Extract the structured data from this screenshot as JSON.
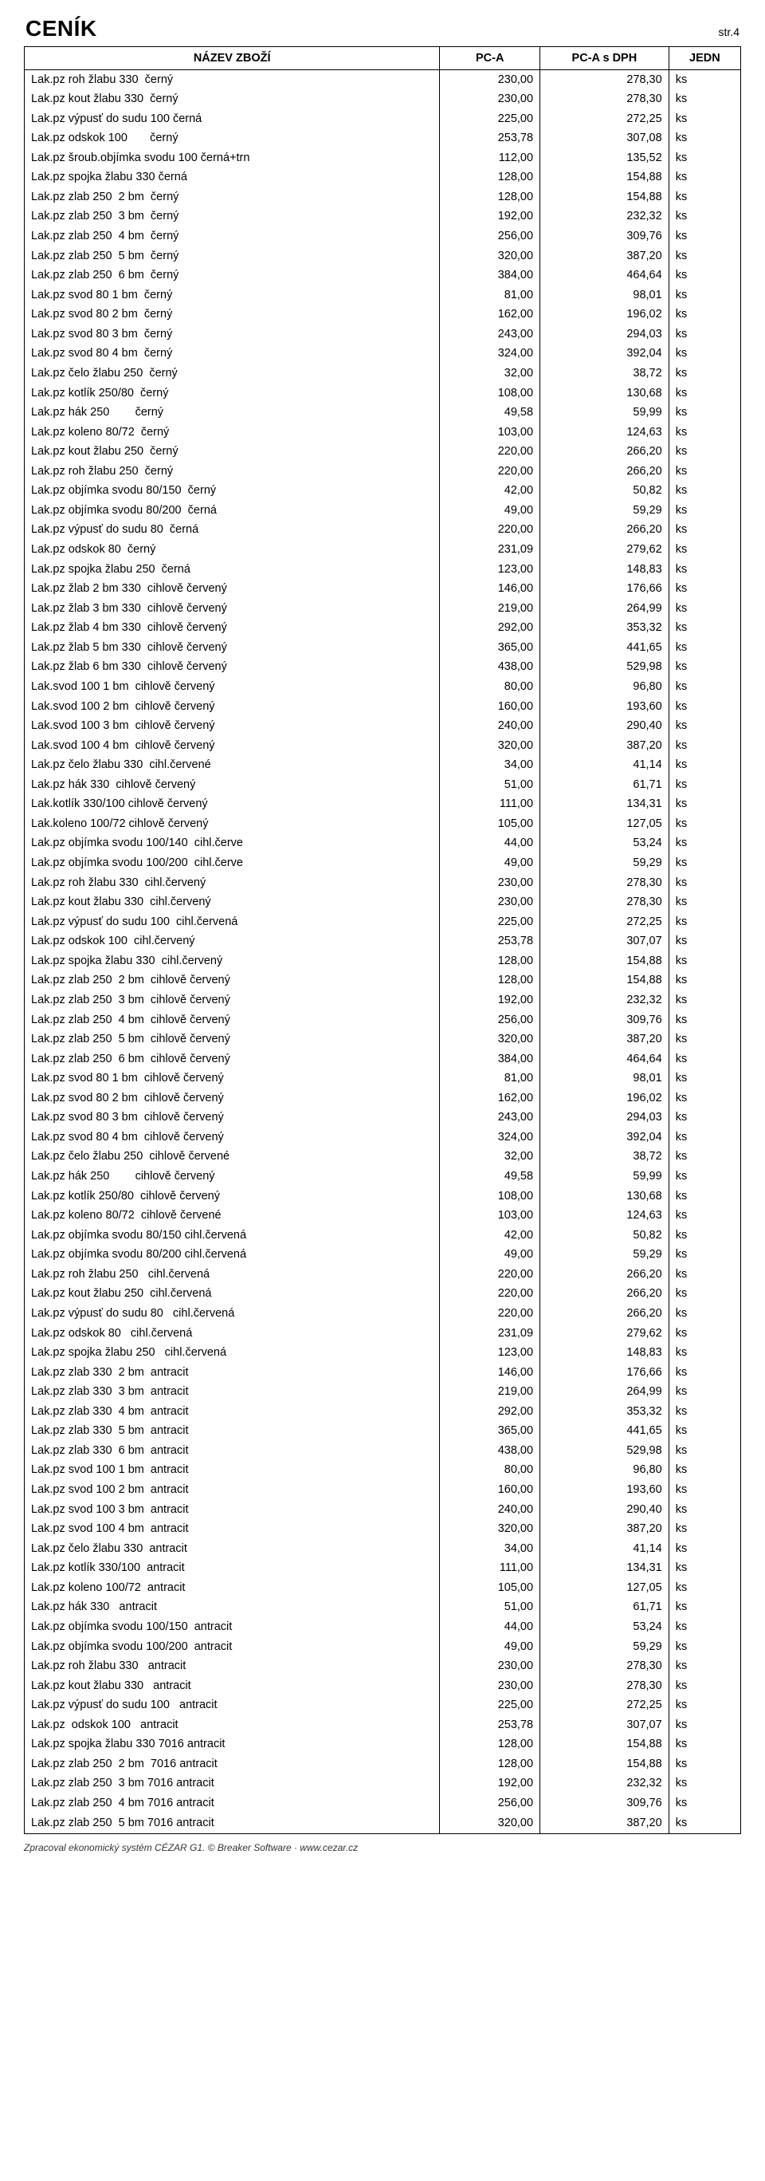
{
  "header": {
    "title": "CENÍK",
    "page_label": "str.4"
  },
  "columns": {
    "name": "NÁZEV ZBOŽÍ",
    "pca": "PC-A",
    "pcadph": "PC-A s DPH",
    "jedn": "JEDN"
  },
  "footer": "Zpracoval ekonomický systém CÉZAR G1.   © Breaker Software · www.cezar.cz",
  "rows": [
    {
      "name": "Lak.pz roh žlabu 330  černý",
      "a": "230,00",
      "b": "278,30",
      "u": "ks"
    },
    {
      "name": "Lak.pz kout žlabu 330  černý",
      "a": "230,00",
      "b": "278,30",
      "u": "ks"
    },
    {
      "name": "Lak.pz výpusť do sudu 100 černá",
      "a": "225,00",
      "b": "272,25",
      "u": "ks"
    },
    {
      "name": "Lak.pz odskok 100       černý",
      "a": "253,78",
      "b": "307,08",
      "u": "ks"
    },
    {
      "name": "Lak.pz šroub.objímka svodu 100 černá+trn",
      "a": "112,00",
      "b": "135,52",
      "u": "ks"
    },
    {
      "name": "Lak.pz spojka žlabu 330 černá",
      "a": "128,00",
      "b": "154,88",
      "u": "ks"
    },
    {
      "name": "Lak.pz zlab 250  2 bm  černý",
      "a": "128,00",
      "b": "154,88",
      "u": "ks"
    },
    {
      "name": "Lak.pz zlab 250  3 bm  černý",
      "a": "192,00",
      "b": "232,32",
      "u": "ks"
    },
    {
      "name": "Lak.pz zlab 250  4 bm  černý",
      "a": "256,00",
      "b": "309,76",
      "u": "ks"
    },
    {
      "name": "Lak.pz zlab 250  5 bm  černý",
      "a": "320,00",
      "b": "387,20",
      "u": "ks"
    },
    {
      "name": "Lak.pz zlab 250  6 bm  černý",
      "a": "384,00",
      "b": "464,64",
      "u": "ks"
    },
    {
      "name": "Lak.pz svod 80 1 bm  černý",
      "a": "81,00",
      "b": "98,01",
      "u": "ks"
    },
    {
      "name": "Lak.pz svod 80 2 bm  černý",
      "a": "162,00",
      "b": "196,02",
      "u": "ks"
    },
    {
      "name": "Lak.pz svod 80 3 bm  černý",
      "a": "243,00",
      "b": "294,03",
      "u": "ks"
    },
    {
      "name": "Lak.pz svod 80 4 bm  černý",
      "a": "324,00",
      "b": "392,04",
      "u": "ks"
    },
    {
      "name": "Lak.pz čelo žlabu 250  černý",
      "a": "32,00",
      "b": "38,72",
      "u": "ks"
    },
    {
      "name": "Lak.pz kotlík 250/80  černý",
      "a": "108,00",
      "b": "130,68",
      "u": "ks"
    },
    {
      "name": "Lak.pz hák 250        černý",
      "a": "49,58",
      "b": "59,99",
      "u": "ks"
    },
    {
      "name": "Lak.pz koleno 80/72  černý",
      "a": "103,00",
      "b": "124,63",
      "u": "ks"
    },
    {
      "name": "Lak.pz kout žlabu 250  černý",
      "a": "220,00",
      "b": "266,20",
      "u": "ks"
    },
    {
      "name": "Lak.pz roh žlabu 250  černý",
      "a": "220,00",
      "b": "266,20",
      "u": "ks"
    },
    {
      "name": "Lak.pz objímka svodu 80/150  černý",
      "a": "42,00",
      "b": "50,82",
      "u": "ks"
    },
    {
      "name": "Lak.pz objímka svodu 80/200  černá",
      "a": "49,00",
      "b": "59,29",
      "u": "ks"
    },
    {
      "name": "Lak.pz výpusť do sudu 80  černá",
      "a": "220,00",
      "b": "266,20",
      "u": "ks"
    },
    {
      "name": "Lak.pz odskok 80  černý",
      "a": "231,09",
      "b": "279,62",
      "u": "ks"
    },
    {
      "name": "Lak.pz spojka žlabu 250  černá",
      "a": "123,00",
      "b": "148,83",
      "u": "ks"
    },
    {
      "name": "Lak.pz žlab 2 bm 330  cihlově červený",
      "a": "146,00",
      "b": "176,66",
      "u": "ks"
    },
    {
      "name": "Lak.pz žlab 3 bm 330  cihlově červený",
      "a": "219,00",
      "b": "264,99",
      "u": "ks"
    },
    {
      "name": "Lak.pz žlab 4 bm 330  cihlově červený",
      "a": "292,00",
      "b": "353,32",
      "u": "ks"
    },
    {
      "name": "Lak.pz žlab 5 bm 330  cihlově červený",
      "a": "365,00",
      "b": "441,65",
      "u": "ks"
    },
    {
      "name": "Lak.pz žlab 6 bm 330  cihlově červený",
      "a": "438,00",
      "b": "529,98",
      "u": "ks"
    },
    {
      "name": "Lak.svod 100 1 bm  cihlově červený",
      "a": "80,00",
      "b": "96,80",
      "u": "ks"
    },
    {
      "name": "Lak.svod 100 2 bm  cihlově červený",
      "a": "160,00",
      "b": "193,60",
      "u": "ks"
    },
    {
      "name": "Lak.svod 100 3 bm  cihlově červený",
      "a": "240,00",
      "b": "290,40",
      "u": "ks"
    },
    {
      "name": "Lak.svod 100 4 bm  cihlově červený",
      "a": "320,00",
      "b": "387,20",
      "u": "ks"
    },
    {
      "name": "Lak.pz čelo žlabu 330  cihl.červené",
      "a": "34,00",
      "b": "41,14",
      "u": "ks"
    },
    {
      "name": "Lak.pz hák 330  cihlově červený",
      "a": "51,00",
      "b": "61,71",
      "u": "ks"
    },
    {
      "name": "Lak.kotlík 330/100 cihlově červený",
      "a": "111,00",
      "b": "134,31",
      "u": "ks"
    },
    {
      "name": "Lak.koleno 100/72 cihlově červený",
      "a": "105,00",
      "b": "127,05",
      "u": "ks"
    },
    {
      "name": "Lak.pz objímka svodu 100/140  cihl.červe",
      "a": "44,00",
      "b": "53,24",
      "u": "ks"
    },
    {
      "name": "Lak.pz objímka svodu 100/200  cihl.červe",
      "a": "49,00",
      "b": "59,29",
      "u": "ks"
    },
    {
      "name": "Lak.pz roh žlabu 330  cihl.červený",
      "a": "230,00",
      "b": "278,30",
      "u": "ks"
    },
    {
      "name": "Lak.pz kout žlabu 330  cihl.červený",
      "a": "230,00",
      "b": "278,30",
      "u": "ks"
    },
    {
      "name": "Lak.pz výpusť do sudu 100  cihl.červená",
      "a": "225,00",
      "b": "272,25",
      "u": "ks"
    },
    {
      "name": "Lak.pz odskok 100  cihl.červený",
      "a": "253,78",
      "b": "307,07",
      "u": "ks"
    },
    {
      "name": "Lak.pz spojka žlabu 330  cihl.červený",
      "a": "128,00",
      "b": "154,88",
      "u": "ks"
    },
    {
      "name": "Lak.pz zlab 250  2 bm  cihlově červený",
      "a": "128,00",
      "b": "154,88",
      "u": "ks"
    },
    {
      "name": "Lak.pz zlab 250  3 bm  cihlově červený",
      "a": "192,00",
      "b": "232,32",
      "u": "ks"
    },
    {
      "name": "Lak.pz zlab 250  4 bm  cihlově červený",
      "a": "256,00",
      "b": "309,76",
      "u": "ks"
    },
    {
      "name": "Lak.pz zlab 250  5 bm  cihlově červený",
      "a": "320,00",
      "b": "387,20",
      "u": "ks"
    },
    {
      "name": "Lak.pz zlab 250  6 bm  cihlově červený",
      "a": "384,00",
      "b": "464,64",
      "u": "ks"
    },
    {
      "name": "Lak.pz svod 80 1 bm  cihlově červený",
      "a": "81,00",
      "b": "98,01",
      "u": "ks"
    },
    {
      "name": "Lak.pz svod 80 2 bm  cihlově červený",
      "a": "162,00",
      "b": "196,02",
      "u": "ks"
    },
    {
      "name": "Lak.pz svod 80 3 bm  cihlově červený",
      "a": "243,00",
      "b": "294,03",
      "u": "ks"
    },
    {
      "name": "Lak.pz svod 80 4 bm  cihlově červený",
      "a": "324,00",
      "b": "392,04",
      "u": "ks"
    },
    {
      "name": "Lak.pz čelo žlabu 250  cihlově červené",
      "a": "32,00",
      "b": "38,72",
      "u": "ks"
    },
    {
      "name": "Lak.pz hák 250        cihlově červený",
      "a": "49,58",
      "b": "59,99",
      "u": "ks"
    },
    {
      "name": "Lak.pz kotlík 250/80  cihlově červený",
      "a": "108,00",
      "b": "130,68",
      "u": "ks"
    },
    {
      "name": "Lak.pz koleno 80/72  cihlově červené",
      "a": "103,00",
      "b": "124,63",
      "u": "ks"
    },
    {
      "name": "Lak.pz objímka svodu 80/150 cihl.červená",
      "a": "42,00",
      "b": "50,82",
      "u": "ks"
    },
    {
      "name": "Lak.pz objímka svodu 80/200 cihl.červená",
      "a": "49,00",
      "b": "59,29",
      "u": "ks"
    },
    {
      "name": "Lak.pz roh žlabu 250   cihl.červená",
      "a": "220,00",
      "b": "266,20",
      "u": "ks"
    },
    {
      "name": "Lak.pz kout žlabu 250  cihl.červená",
      "a": "220,00",
      "b": "266,20",
      "u": "ks"
    },
    {
      "name": "Lak.pz výpusť do sudu 80   cihl.červená",
      "a": "220,00",
      "b": "266,20",
      "u": "ks"
    },
    {
      "name": "Lak.pz odskok 80   cihl.červená",
      "a": "231,09",
      "b": "279,62",
      "u": "ks"
    },
    {
      "name": "Lak.pz spojka žlabu 250   cihl.červená",
      "a": "123,00",
      "b": "148,83",
      "u": "ks"
    },
    {
      "name": "Lak.pz zlab 330  2 bm  antracit",
      "a": "146,00",
      "b": "176,66",
      "u": "ks"
    },
    {
      "name": "Lak.pz zlab 330  3 bm  antracit",
      "a": "219,00",
      "b": "264,99",
      "u": "ks"
    },
    {
      "name": "Lak.pz zlab 330  4 bm  antracit",
      "a": "292,00",
      "b": "353,32",
      "u": "ks"
    },
    {
      "name": "Lak.pz zlab 330  5 bm  antracit",
      "a": "365,00",
      "b": "441,65",
      "u": "ks"
    },
    {
      "name": "Lak.pz zlab 330  6 bm  antracit",
      "a": "438,00",
      "b": "529,98",
      "u": "ks"
    },
    {
      "name": "Lak.pz svod 100 1 bm  antracit",
      "a": "80,00",
      "b": "96,80",
      "u": "ks"
    },
    {
      "name": "Lak.pz svod 100 2 bm  antracit",
      "a": "160,00",
      "b": "193,60",
      "u": "ks"
    },
    {
      "name": "Lak.pz svod 100 3 bm  antracit",
      "a": "240,00",
      "b": "290,40",
      "u": "ks"
    },
    {
      "name": "Lak.pz svod 100 4 bm  antracit",
      "a": "320,00",
      "b": "387,20",
      "u": "ks"
    },
    {
      "name": "Lak.pz čelo žlabu 330  antracit",
      "a": "34,00",
      "b": "41,14",
      "u": "ks"
    },
    {
      "name": "Lak.pz kotlík 330/100  antracit",
      "a": "111,00",
      "b": "134,31",
      "u": "ks"
    },
    {
      "name": "Lak.pz koleno 100/72  antracit",
      "a": "105,00",
      "b": "127,05",
      "u": "ks"
    },
    {
      "name": "Lak.pz hák 330   antracit",
      "a": "51,00",
      "b": "61,71",
      "u": "ks"
    },
    {
      "name": "Lak.pz objímka svodu 100/150  antracit",
      "a": "44,00",
      "b": "53,24",
      "u": "ks"
    },
    {
      "name": "Lak.pz objímka svodu 100/200  antracit",
      "a": "49,00",
      "b": "59,29",
      "u": "ks"
    },
    {
      "name": "Lak.pz roh žlabu 330   antracit",
      "a": "230,00",
      "b": "278,30",
      "u": "ks"
    },
    {
      "name": "Lak.pz kout žlabu 330   antracit",
      "a": "230,00",
      "b": "278,30",
      "u": "ks"
    },
    {
      "name": "Lak.pz výpusť do sudu 100   antracit",
      "a": "225,00",
      "b": "272,25",
      "u": "ks"
    },
    {
      "name": "Lak.pz  odskok 100   antracit",
      "a": "253,78",
      "b": "307,07",
      "u": "ks"
    },
    {
      "name": "Lak.pz spojka žlabu 330 7016 antracit",
      "a": "128,00",
      "b": "154,88",
      "u": "ks"
    },
    {
      "name": "Lak.pz zlab 250  2 bm  7016 antracit",
      "a": "128,00",
      "b": "154,88",
      "u": "ks"
    },
    {
      "name": "Lak.pz zlab 250  3 bm 7016 antracit",
      "a": "192,00",
      "b": "232,32",
      "u": "ks"
    },
    {
      "name": "Lak.pz zlab 250  4 bm 7016 antracit",
      "a": "256,00",
      "b": "309,76",
      "u": "ks"
    },
    {
      "name": "Lak.pz zlab 250  5 bm 7016 antracit",
      "a": "320,00",
      "b": "387,20",
      "u": "ks"
    }
  ]
}
